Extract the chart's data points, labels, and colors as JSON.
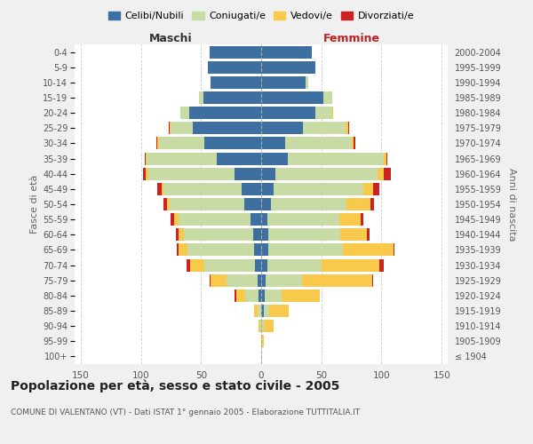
{
  "age_groups": [
    "100+",
    "95-99",
    "90-94",
    "85-89",
    "80-84",
    "75-79",
    "70-74",
    "65-69",
    "60-64",
    "55-59",
    "50-54",
    "45-49",
    "40-44",
    "35-39",
    "30-34",
    "25-29",
    "20-24",
    "15-19",
    "10-14",
    "5-9",
    "0-4"
  ],
  "birth_years": [
    "≤ 1904",
    "1905-1909",
    "1910-1914",
    "1915-1919",
    "1920-1924",
    "1925-1929",
    "1930-1934",
    "1935-1939",
    "1940-1944",
    "1945-1949",
    "1950-1954",
    "1955-1959",
    "1960-1964",
    "1965-1969",
    "1970-1974",
    "1975-1979",
    "1980-1984",
    "1985-1989",
    "1990-1994",
    "1995-1999",
    "2000-2004"
  ],
  "colors": {
    "celibe": "#3d6fa0",
    "coniugato": "#c8dba4",
    "vedovo": "#f8c94a",
    "divorziato": "#cc2222"
  },
  "maschi": {
    "celibe": [
      0,
      0,
      0,
      0,
      2,
      3,
      5,
      6,
      7,
      9,
      14,
      16,
      22,
      37,
      47,
      57,
      60,
      48,
      42,
      44,
      43
    ],
    "coniugato": [
      0,
      0,
      1,
      3,
      11,
      26,
      42,
      55,
      57,
      60,
      62,
      65,
      72,
      58,
      38,
      18,
      7,
      4,
      0,
      0,
      0
    ],
    "vedovo": [
      0,
      0,
      1,
      3,
      8,
      13,
      12,
      8,
      5,
      3,
      2,
      2,
      2,
      1,
      1,
      1,
      0,
      0,
      0,
      0,
      0
    ],
    "divorziato": [
      0,
      0,
      0,
      0,
      1,
      1,
      3,
      1,
      2,
      3,
      3,
      3,
      2,
      1,
      1,
      1,
      0,
      0,
      0,
      0,
      0
    ]
  },
  "femmine": {
    "nubile": [
      0,
      0,
      0,
      2,
      3,
      4,
      5,
      6,
      6,
      5,
      8,
      10,
      12,
      22,
      20,
      35,
      45,
      52,
      37,
      45,
      42
    ],
    "coniugata": [
      0,
      0,
      2,
      5,
      14,
      30,
      45,
      62,
      60,
      60,
      63,
      75,
      85,
      80,
      55,
      35,
      14,
      7,
      2,
      0,
      0
    ],
    "vedova": [
      0,
      2,
      8,
      16,
      32,
      58,
      48,
      42,
      22,
      18,
      20,
      8,
      5,
      2,
      2,
      2,
      1,
      0,
      0,
      0,
      0
    ],
    "divorziata": [
      0,
      0,
      0,
      0,
      0,
      1,
      4,
      1,
      2,
      2,
      3,
      5,
      6,
      1,
      1,
      1,
      0,
      0,
      0,
      0,
      0
    ]
  },
  "title": "Popolazione per età, sesso e stato civile - 2005",
  "subtitle": "COMUNE DI VALENTANO (VT) - Dati ISTAT 1° gennaio 2005 - Elaborazione TUTTITALIA.IT",
  "xlabel_maschi": "Maschi",
  "xlabel_femmine": "Femmine",
  "ylabel_left": "Fasce di età",
  "ylabel_right": "Anni di nascita",
  "xlim": 155,
  "bg_color": "#f0f0f0",
  "plot_bg": "#ffffff",
  "grid_color": "#cccccc",
  "legend_labels": [
    "Celibi/Nubili",
    "Coniugati/e",
    "Vedovi/e",
    "Divorziati/e"
  ]
}
